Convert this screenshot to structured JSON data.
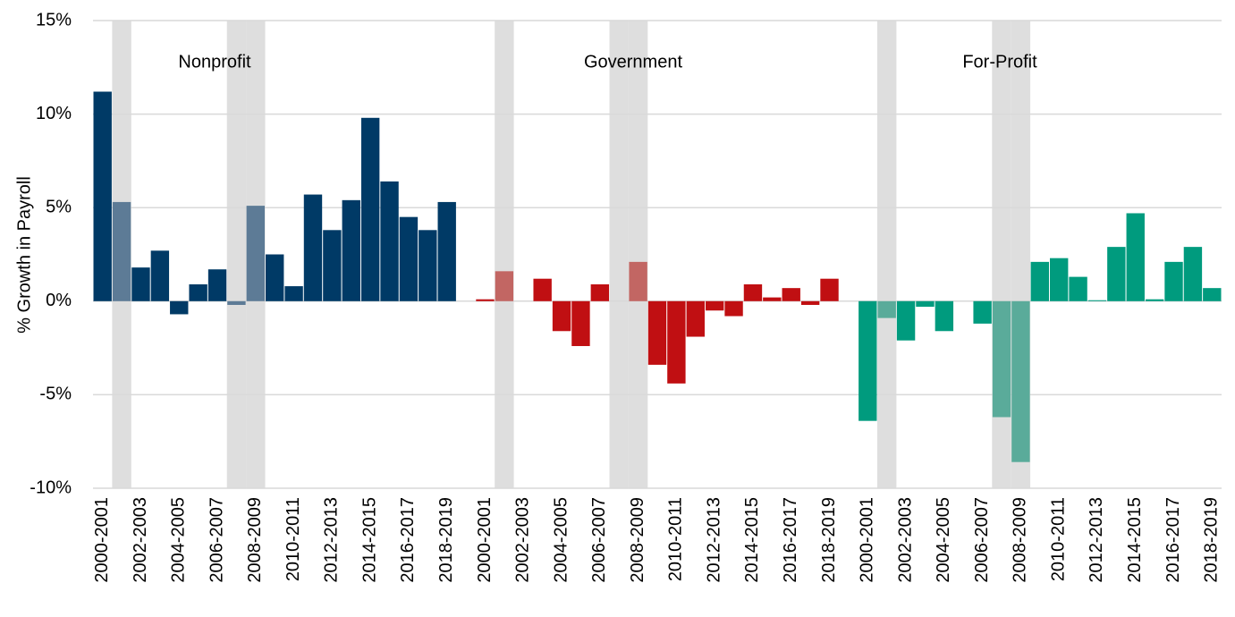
{
  "chart_data": {
    "type": "bar",
    "y_label": "% Growth in Payroll",
    "annotations": [
      "Nonprofit",
      "Government",
      "For-Profit"
    ],
    "categories": [
      "2000-2001",
      null,
      "2002-2003",
      null,
      "2004-2005",
      null,
      "2006-2007",
      null,
      "2008-2009",
      null,
      "2010-2011",
      null,
      "2012-2013",
      null,
      "2014-2015",
      null,
      "2016-2017",
      null,
      "2018-2019",
      null,
      "2000-2001",
      null,
      "2002-2003",
      null,
      "2004-2005",
      null,
      "2006-2007",
      null,
      "2008-2009",
      null,
      "2010-2011",
      null,
      "2012-2013",
      null,
      "2014-2015",
      null,
      "2016-2017",
      null,
      "2018-2019",
      null,
      "2000-2001",
      null,
      "2002-2003",
      null,
      "2004-2005",
      null,
      "2006-2007",
      null,
      "2008-2009",
      null,
      "2010-2011",
      null,
      "2012-2013",
      null,
      "2014-2015",
      null,
      "2016-2017",
      null,
      "2018-2019"
    ],
    "series": [
      {
        "name": "Nonprofit",
        "color": "#003a66",
        "recession_color": "#5d7b96",
        "values": [
          11.2,
          5.3,
          1.8,
          2.7,
          -0.7,
          0.9,
          1.7,
          -0.2,
          5.1,
          2.5,
          0.8,
          5.7,
          3.8,
          5.4,
          9.8,
          6.4,
          4.5,
          3.8,
          5.3,
          null,
          null,
          null,
          null,
          null,
          null,
          null,
          null,
          null,
          null,
          null,
          null,
          null,
          null,
          null,
          null,
          null,
          null,
          null,
          null,
          null,
          null,
          null,
          null,
          null,
          null,
          null,
          null,
          null,
          null,
          null,
          null,
          null,
          null,
          null,
          null,
          null,
          null,
          null,
          null
        ]
      },
      {
        "name": "Government",
        "color": "#c00f12",
        "recession_color": "#c26663",
        "values": [
          null,
          null,
          null,
          null,
          null,
          null,
          null,
          null,
          null,
          null,
          null,
          null,
          null,
          null,
          null,
          null,
          null,
          null,
          null,
          null,
          0.1,
          1.6,
          0,
          1.2,
          -1.6,
          -2.4,
          0.9,
          0,
          2.1,
          -3.4,
          -4.4,
          -1.9,
          -0.5,
          -0.8,
          0.9,
          0.2,
          0.7,
          -0.2,
          1.2,
          null,
          null,
          null,
          null,
          null,
          null,
          null,
          null,
          null,
          null,
          null,
          null,
          null,
          null,
          null,
          null,
          null,
          null,
          null,
          null
        ]
      },
      {
        "name": "For-Profit",
        "color": "#009b7e",
        "recession_color": "#5aab9a",
        "values": [
          null,
          null,
          null,
          null,
          null,
          null,
          null,
          null,
          null,
          null,
          null,
          null,
          null,
          null,
          null,
          null,
          null,
          null,
          null,
          null,
          null,
          null,
          null,
          null,
          null,
          null,
          null,
          null,
          null,
          null,
          null,
          null,
          null,
          null,
          null,
          null,
          null,
          null,
          null,
          null,
          -6.4,
          -0.9,
          -2.1,
          -0.3,
          -1.6,
          0,
          -1.2,
          -6.2,
          -8.6,
          2.1,
          2.3,
          1.3,
          0.05,
          2.9,
          4.7,
          0.1,
          2.1,
          2.9,
          0.7
        ]
      }
    ],
    "recession_categories": [
      1,
      7,
      8,
      21,
      27,
      28,
      41,
      47,
      48
    ],
    "recession_band_color": "#dedede",
    "ylim": [
      -10,
      15
    ],
    "yticks": [
      {
        "value": -10,
        "label": "-10%"
      },
      {
        "value": -5,
        "label": "-5%"
      },
      {
        "value": 0,
        "label": "0%"
      },
      {
        "value": 5,
        "label": "5%"
      },
      {
        "value": 10,
        "label": "10%"
      },
      {
        "value": 15,
        "label": "15%"
      }
    ],
    "grid": true
  }
}
